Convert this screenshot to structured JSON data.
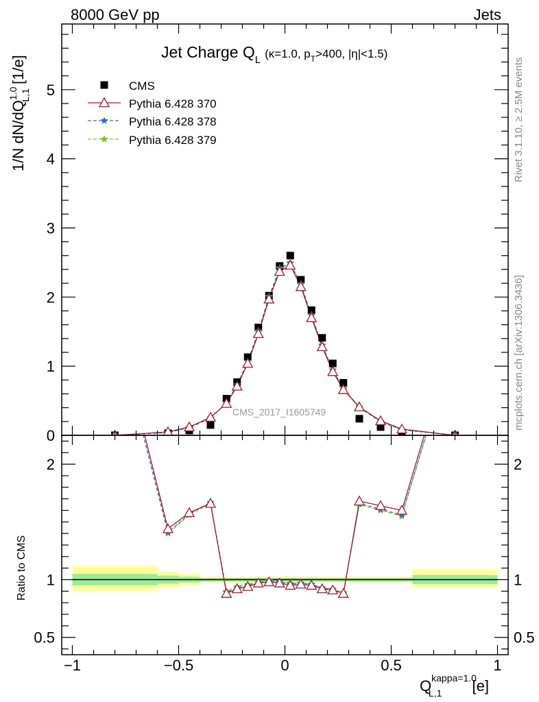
{
  "header": {
    "left": "8000 GeV pp",
    "right": "Jets"
  },
  "title": {
    "main": "Jet Charge Q",
    "main_sub": "L",
    "cuts_1": "(κ=1.0, p",
    "cuts_sub": "T",
    "cuts_2": ">400, |η|<1.5)"
  },
  "side_labels": {
    "top": "Rivet 3.1.10, ≥ 2.5M events",
    "bottom": "mcplots.cern.ch [arXiv:1306.3436]"
  },
  "watermark": "CMS_2017_I1605749",
  "ylabel_top": {
    "a": "1/N dN/dQ",
    "sup": "1.0",
    "sub": "L,1",
    "b": " [1/e]"
  },
  "ylabel_bottom": "Ratio to CMS",
  "xlabel": {
    "a": "Q",
    "sup": "kappa=1.0",
    "sub": "L,1",
    "b": " [e]"
  },
  "colors": {
    "cms": "#000000",
    "p370": "#a01a2e",
    "p378": "#2a6fd0",
    "p379": "#88c020",
    "band_inner": "#99ee99",
    "band_outer": "#ffff99"
  },
  "chart_data": [
    {
      "type": "scatter",
      "panel": "main",
      "xlim": [
        -1.05,
        1.05
      ],
      "ylim": [
        0,
        5.95
      ],
      "xticks": [
        -1,
        -0.5,
        0,
        0.5,
        1
      ],
      "xtick_labels": [
        "−1",
        "−0.5",
        "0",
        "0.5",
        "1"
      ],
      "yticks": [
        0,
        1,
        2,
        3,
        4,
        5
      ],
      "ytick_labels": [
        "0",
        "1",
        "2",
        "3",
        "4",
        "5"
      ],
      "legend_position": "top-left",
      "series": [
        {
          "name": "CMS",
          "marker": "square",
          "x": [
            -0.8,
            -0.55,
            -0.45,
            -0.35,
            -0.275,
            -0.225,
            -0.175,
            -0.125,
            -0.075,
            -0.025,
            0.025,
            0.075,
            0.125,
            0.175,
            0.225,
            0.275,
            0.35,
            0.45,
            0.55,
            0.8
          ],
          "y": [
            0.0,
            0.03,
            0.07,
            0.15,
            0.53,
            0.77,
            1.13,
            1.56,
            2.02,
            2.45,
            2.6,
            2.25,
            1.81,
            1.41,
            1.04,
            0.76,
            0.24,
            0.12,
            0.03,
            0.0
          ]
        },
        {
          "name": "Pythia 6.428 370",
          "marker": "triangle",
          "style": "solid",
          "x": [
            -0.8,
            -0.55,
            -0.45,
            -0.35,
            -0.275,
            -0.225,
            -0.175,
            -0.125,
            -0.075,
            -0.025,
            0.025,
            0.075,
            0.125,
            0.175,
            0.225,
            0.275,
            0.35,
            0.45,
            0.55,
            0.8
          ],
          "y": [
            0.0,
            0.05,
            0.12,
            0.26,
            0.46,
            0.71,
            1.04,
            1.47,
            1.97,
            2.37,
            2.46,
            2.15,
            1.7,
            1.28,
            0.92,
            0.66,
            0.41,
            0.21,
            0.09,
            0.0
          ]
        },
        {
          "name": "Pythia 6.428 378",
          "marker": "star",
          "style": "dashed",
          "x": [
            -0.8,
            -0.55,
            -0.45,
            -0.35,
            -0.275,
            -0.225,
            -0.175,
            -0.125,
            -0.075,
            -0.025,
            0.025,
            0.075,
            0.125,
            0.175,
            0.225,
            0.275,
            0.35,
            0.45,
            0.55,
            0.8
          ],
          "y": [
            0.0,
            0.04,
            0.11,
            0.25,
            0.47,
            0.73,
            1.07,
            1.5,
            2.0,
            2.41,
            2.49,
            2.18,
            1.73,
            1.3,
            0.94,
            0.67,
            0.4,
            0.2,
            0.08,
            0.0
          ]
        },
        {
          "name": "Pythia 6.428 379",
          "marker": "star",
          "style": "dashed",
          "x": [
            -0.8,
            -0.55,
            -0.45,
            -0.35,
            -0.275,
            -0.225,
            -0.175,
            -0.125,
            -0.075,
            -0.025,
            0.025,
            0.075,
            0.125,
            0.175,
            0.225,
            0.275,
            0.35,
            0.45,
            0.55,
            0.8
          ],
          "y": [
            0.0,
            0.04,
            0.11,
            0.25,
            0.47,
            0.73,
            1.07,
            1.51,
            2.01,
            2.42,
            2.5,
            2.19,
            1.74,
            1.31,
            0.95,
            0.68,
            0.41,
            0.2,
            0.08,
            0.0
          ]
        }
      ]
    },
    {
      "type": "line",
      "panel": "ratio",
      "xlim": [
        -1.05,
        1.05
      ],
      "ylim": [
        0.35,
        2.25
      ],
      "yticks": [
        0.5,
        1,
        2
      ],
      "ytick_labels": [
        "0.5",
        "1",
        "2"
      ],
      "bands": {
        "edges": [
          -1.0,
          -0.6,
          -0.5,
          -0.4,
          0.6,
          1.0
        ],
        "inner": [
          [
            0.95,
            1.05
          ],
          [
            0.965,
            1.035
          ],
          [
            0.975,
            1.025
          ],
          [
            0.985,
            1.015
          ],
          [
            0.96,
            1.04
          ]
        ],
        "outer": [
          [
            0.9,
            1.12
          ],
          [
            0.93,
            1.07
          ],
          [
            0.95,
            1.05
          ],
          [
            0.975,
            1.025
          ],
          [
            0.93,
            1.09
          ]
        ]
      },
      "series": [
        {
          "name": "Pythia 6.428 370",
          "x": [
            -0.68,
            -0.55,
            -0.45,
            -0.35,
            -0.275,
            -0.225,
            -0.175,
            -0.125,
            -0.075,
            -0.025,
            0.025,
            0.075,
            0.125,
            0.175,
            0.225,
            0.275,
            0.35,
            0.45,
            0.55,
            0.68
          ],
          "y": [
            2.4,
            1.44,
            1.58,
            1.66,
            0.88,
            0.92,
            0.94,
            0.97,
            0.98,
            0.97,
            0.95,
            0.96,
            0.95,
            0.92,
            0.91,
            0.88,
            1.68,
            1.64,
            1.6,
            2.4
          ]
        },
        {
          "name": "Pythia 6.428 378",
          "x": [
            -0.68,
            -0.55,
            -0.45,
            -0.35,
            -0.275,
            -0.225,
            -0.175,
            -0.125,
            -0.075,
            -0.025,
            0.025,
            0.075,
            0.125,
            0.175,
            0.225,
            0.275,
            0.35,
            0.45,
            0.55,
            0.68
          ],
          "y": [
            2.35,
            1.41,
            1.57,
            1.67,
            0.89,
            0.93,
            0.95,
            0.97,
            0.99,
            0.98,
            0.96,
            0.97,
            0.96,
            0.93,
            0.91,
            0.88,
            1.66,
            1.61,
            1.56,
            2.35
          ]
        },
        {
          "name": "Pythia 6.428 379",
          "x": [
            -0.68,
            -0.55,
            -0.45,
            -0.35,
            -0.275,
            -0.225,
            -0.175,
            -0.125,
            -0.075,
            -0.025,
            0.025,
            0.075,
            0.125,
            0.175,
            0.225,
            0.275,
            0.35,
            0.45,
            0.55,
            0.68
          ],
          "y": [
            2.35,
            1.4,
            1.56,
            1.66,
            0.9,
            0.94,
            0.96,
            0.98,
            0.99,
            0.98,
            0.97,
            0.97,
            0.96,
            0.93,
            0.92,
            0.89,
            1.65,
            1.6,
            1.55,
            2.35
          ]
        }
      ]
    }
  ]
}
